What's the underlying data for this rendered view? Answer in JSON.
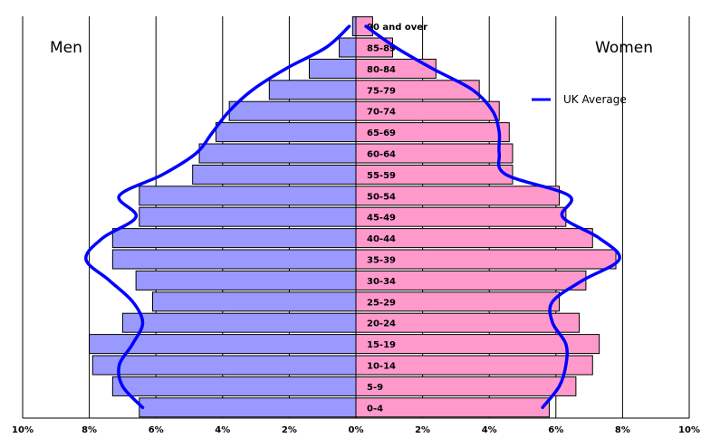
{
  "chart_data": {
    "type": "bar",
    "orientation": "horizontal",
    "categories": [
      "0-4",
      "5-9",
      "10-14",
      "15-19",
      "20-24",
      "25-29",
      "30-34",
      "35-39",
      "40-44",
      "45-49",
      "50-54",
      "55-59",
      "60-64",
      "65-69",
      "70-74",
      "75-79",
      "80-84",
      "85-89",
      "90 and over"
    ],
    "series": [
      {
        "name": "Men",
        "color": "#9999ff",
        "values": [
          6.5,
          7.3,
          7.9,
          8.0,
          7.0,
          6.1,
          6.6,
          7.3,
          7.3,
          6.5,
          6.5,
          4.9,
          4.7,
          4.2,
          3.8,
          2.6,
          1.4,
          0.5,
          0.1
        ]
      },
      {
        "name": "Women",
        "color": "#ff99cc",
        "values": [
          5.8,
          6.6,
          7.1,
          7.3,
          6.7,
          6.1,
          6.9,
          7.8,
          7.1,
          6.3,
          6.1,
          4.7,
          4.7,
          4.6,
          4.3,
          3.7,
          2.4,
          1.1,
          0.5
        ]
      },
      {
        "name": "UK Average",
        "color": "#0000ff",
        "style": "line",
        "men": [
          6.4,
          7.0,
          7.1,
          6.7,
          6.4,
          6.7,
          7.4,
          8.1,
          7.6,
          6.6,
          7.1,
          5.8,
          4.8,
          4.3,
          3.8,
          3.1,
          2.1,
          0.9,
          0.2
        ],
        "women": [
          5.6,
          6.1,
          6.3,
          6.3,
          5.9,
          5.9,
          6.8,
          7.9,
          7.3,
          6.2,
          6.4,
          4.5,
          4.3,
          4.3,
          4.1,
          3.5,
          2.3,
          1.2,
          0.3
        ]
      }
    ],
    "xlim": [
      -10,
      10
    ],
    "xticks": [
      -10,
      -8,
      -6,
      -4,
      -2,
      0,
      2,
      4,
      6,
      8,
      10
    ],
    "xtick_labels": [
      "10%",
      "8%",
      "6%",
      "4%",
      "2%",
      "0%",
      "2%",
      "4%",
      "6%",
      "8%",
      "10%"
    ],
    "title": "",
    "xlabel": "",
    "ylabel": "",
    "grid": "vertical",
    "legend": "right"
  },
  "labels": {
    "men": "Men",
    "women": "Women",
    "legend_entry": "UK Average"
  }
}
